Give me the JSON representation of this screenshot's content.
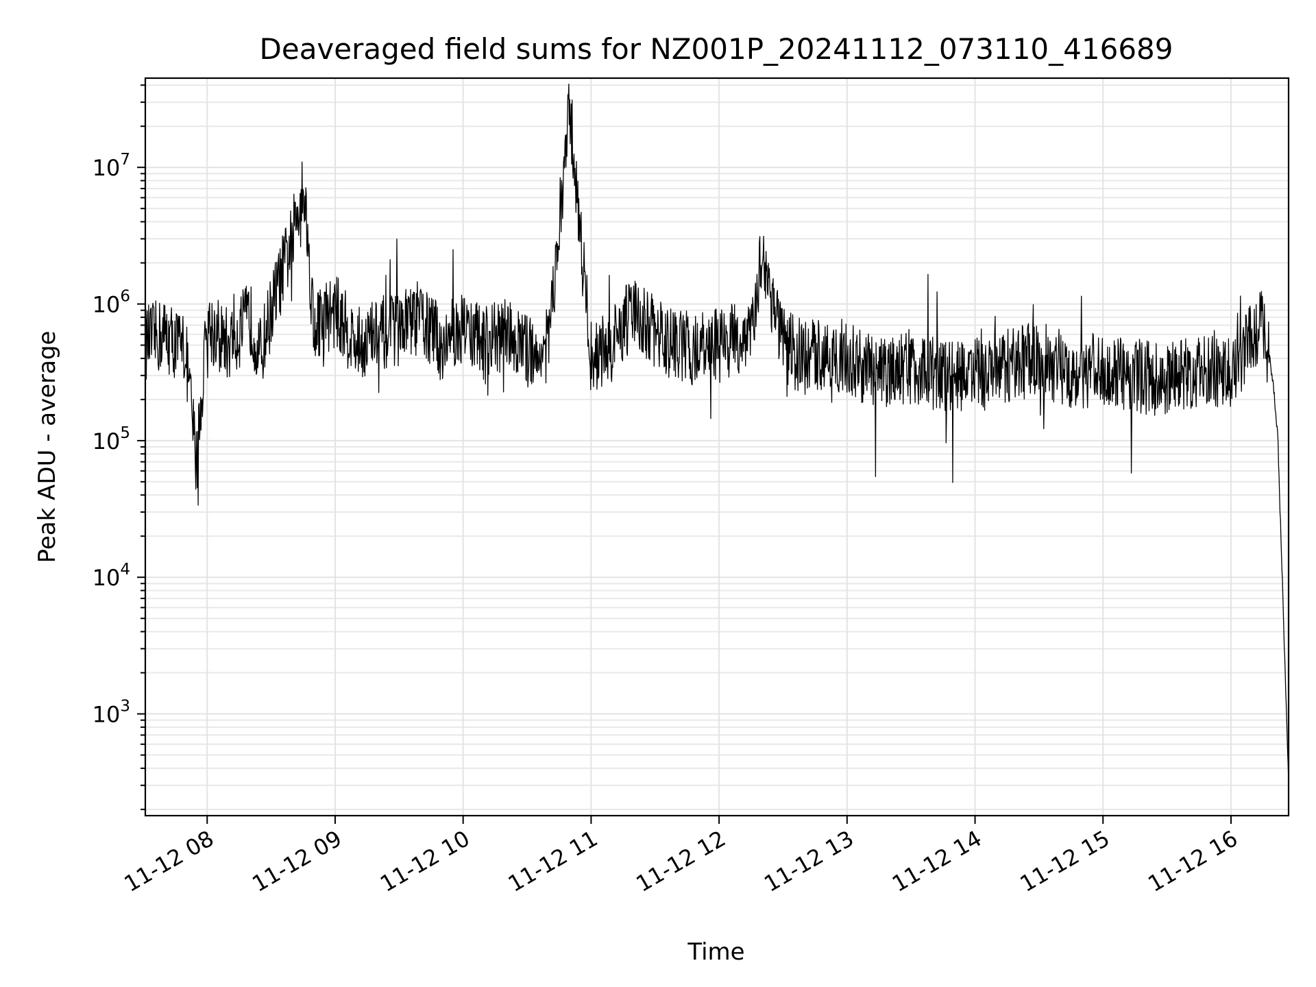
{
  "chart_data": {
    "type": "line",
    "title": "Deaveraged field sums for NZ001P_20241112_073110_416689",
    "xlabel": "Time",
    "ylabel": "Peak ADU - average",
    "yscale": "log",
    "ylim": [
      180,
      45000000
    ],
    "xlim": [
      "11-12 07:31",
      "11-12 16:27"
    ],
    "x_ticks": [
      "11-12 08",
      "11-12 09",
      "11-12 10",
      "11-12 11",
      "11-12 12",
      "11-12 13",
      "11-12 14",
      "11-12 15",
      "11-12 16"
    ],
    "y_ticks": [
      {
        "base": "10",
        "exp": "3",
        "value": 1000
      },
      {
        "base": "10",
        "exp": "4",
        "value": 10000
      },
      {
        "base": "10",
        "exp": "5",
        "value": 100000
      },
      {
        "base": "10",
        "exp": "6",
        "value": 1000000
      },
      {
        "base": "10",
        "exp": "7",
        "value": 10000000
      }
    ],
    "grid": true,
    "line_color": "#000000",
    "series": [
      {
        "x": [
          "11-12 07:31",
          "11-12 07:40",
          "11-12 07:50",
          "11-12 07:55",
          "11-12 08:00",
          "11-12 08:10",
          "11-12 08:20",
          "11-12 08:25",
          "11-12 08:30",
          "11-12 08:40",
          "11-12 08:45",
          "11-12 08:50",
          "11-12 09:00",
          "11-12 09:10",
          "11-12 09:20",
          "11-12 09:30",
          "11-12 09:40",
          "11-12 09:50",
          "11-12 10:00",
          "11-12 10:10",
          "11-12 10:20",
          "11-12 10:30",
          "11-12 10:40",
          "11-12 10:50",
          "11-12 11:00",
          "11-12 11:10",
          "11-12 11:20",
          "11-12 11:30",
          "11-12 11:40",
          "11-12 11:50",
          "11-12 12:00",
          "11-12 12:15",
          "11-12 12:20",
          "11-12 12:30",
          "11-12 12:40",
          "11-12 12:50",
          "11-12 13:00",
          "11-12 13:15",
          "11-12 13:30",
          "11-12 13:45",
          "11-12 14:00",
          "11-12 14:15",
          "11-12 14:30",
          "11-12 14:45",
          "11-12 15:00",
          "11-12 15:15",
          "11-12 15:30",
          "11-12 15:45",
          "11-12 16:00",
          "11-12 16:10",
          "11-12 16:15",
          "11-12 16:18",
          "11-12 16:20",
          "11-12 16:22",
          "11-12 16:24",
          "11-12 16:26",
          "11-12 16:27"
        ],
        "values": [
          520000,
          600000,
          450000,
          68000,
          700000,
          500000,
          800000,
          420000,
          900000,
          3000000,
          8500000,
          700000,
          900000,
          500000,
          600000,
          650000,
          800000,
          500000,
          700000,
          500000,
          600000,
          450000,
          500000,
          27000000,
          400000,
          500000,
          900000,
          600000,
          500000,
          450000,
          500000,
          600000,
          2400000,
          500000,
          400000,
          450000,
          400000,
          300000,
          350000,
          300000,
          300000,
          350000,
          400000,
          320000,
          330000,
          300000,
          280000,
          320000,
          300000,
          600000,
          700000,
          400000,
          250000,
          100000,
          10000,
          1000,
          300
        ]
      }
    ]
  }
}
